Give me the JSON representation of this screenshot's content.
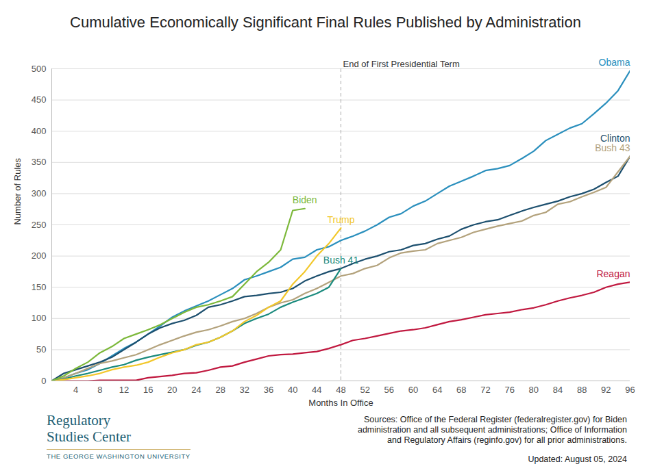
{
  "chart_data": {
    "type": "line",
    "title": "Cumulative Economically Significant Final Rules Published by Administration",
    "x_label": "Months In Office",
    "y_label": "Number of Rules",
    "xlim": [
      0,
      96
    ],
    "xticks": [
      4,
      8,
      12,
      16,
      20,
      24,
      28,
      32,
      36,
      40,
      44,
      48,
      52,
      56,
      60,
      64,
      68,
      72,
      76,
      80,
      84,
      88,
      92,
      96
    ],
    "ylim": [
      0,
      500
    ],
    "yticks": [
      0,
      50,
      100,
      150,
      200,
      250,
      300,
      350,
      400,
      450,
      500
    ],
    "grid": true,
    "annotations": [
      {
        "x": 48,
        "text": "End of First Presidential Term"
      }
    ],
    "x": [
      0,
      2,
      4,
      6,
      8,
      10,
      12,
      14,
      16,
      18,
      20,
      22,
      24,
      26,
      28,
      30,
      32,
      34,
      36,
      38,
      40,
      42,
      44,
      46,
      48,
      50,
      52,
      54,
      56,
      58,
      60,
      62,
      64,
      66,
      68,
      70,
      72,
      74,
      76,
      78,
      80,
      82,
      84,
      86,
      88,
      90,
      92,
      94,
      96
    ],
    "series": [
      {
        "name": "Obama",
        "color": "#2a8fbd",
        "values": [
          0,
          5,
          12,
          18,
          28,
          40,
          52,
          62,
          75,
          88,
          102,
          112,
          120,
          128,
          138,
          148,
          162,
          168,
          175,
          182,
          195,
          198,
          210,
          215,
          225,
          232,
          240,
          250,
          262,
          268,
          280,
          288,
          300,
          312,
          320,
          328,
          337,
          340,
          345,
          356,
          368,
          385,
          395,
          405,
          412,
          428,
          445,
          465,
          497
        ]
      },
      {
        "name": "Clinton",
        "color": "#1c4f6e",
        "values": [
          0,
          12,
          18,
          24,
          30,
          38,
          50,
          62,
          75,
          85,
          92,
          97,
          105,
          118,
          122,
          128,
          135,
          137,
          140,
          142,
          148,
          160,
          168,
          175,
          180,
          188,
          195,
          200,
          207,
          210,
          217,
          220,
          227,
          232,
          243,
          250,
          255,
          258,
          265,
          272,
          278,
          283,
          288,
          295,
          300,
          307,
          318,
          328,
          360
        ]
      },
      {
        "name": "Bush 43",
        "color": "#b3a27c",
        "values": [
          0,
          5,
          12,
          20,
          28,
          32,
          37,
          42,
          50,
          58,
          65,
          72,
          78,
          82,
          88,
          95,
          100,
          108,
          118,
          125,
          130,
          140,
          148,
          158,
          168,
          172,
          180,
          185,
          197,
          205,
          208,
          210,
          220,
          225,
          230,
          238,
          243,
          248,
          252,
          256,
          265,
          270,
          283,
          287,
          295,
          302,
          310,
          335,
          360
        ]
      },
      {
        "name": "Reagan",
        "color": "#c0183f",
        "values": [
          0,
          0,
          0,
          0,
          1,
          1,
          1,
          1,
          5,
          7,
          9,
          12,
          13,
          17,
          22,
          24,
          30,
          35,
          40,
          42,
          43,
          45,
          47,
          52,
          58,
          65,
          68,
          72,
          76,
          80,
          82,
          85,
          90,
          95,
          98,
          102,
          106,
          108,
          110,
          114,
          117,
          122,
          128,
          133,
          137,
          142,
          150,
          155,
          158
        ]
      },
      {
        "name": "Bush 41",
        "color": "#1a8a7d",
        "values": [
          0,
          3,
          8,
          12,
          17,
          22,
          26,
          33,
          38,
          42,
          46,
          50,
          57,
          62,
          70,
          80,
          92,
          100,
          107,
          118,
          126,
          133,
          140,
          150,
          180,
          null,
          null,
          null,
          null,
          null,
          null,
          null,
          null,
          null,
          null,
          null,
          null,
          null,
          null,
          null,
          null,
          null,
          null,
          null,
          null,
          null,
          null,
          null,
          null
        ]
      },
      {
        "name": "Trump",
        "color": "#f2c72a",
        "values": [
          0,
          2,
          5,
          8,
          12,
          18,
          22,
          25,
          30,
          38,
          45,
          50,
          58,
          62,
          70,
          80,
          95,
          105,
          118,
          128,
          155,
          175,
          200,
          220,
          245,
          null,
          null,
          null,
          null,
          null,
          null,
          null,
          null,
          null,
          null,
          null,
          null,
          null,
          null,
          null,
          null,
          null,
          null,
          null,
          null,
          null,
          null,
          null,
          null
        ]
      },
      {
        "name": "Biden",
        "color": "#7cb83a",
        "values": [
          0,
          8,
          20,
          30,
          45,
          55,
          68,
          75,
          82,
          90,
          100,
          110,
          118,
          122,
          128,
          135,
          155,
          175,
          190,
          210,
          273,
          276,
          null,
          null,
          null,
          null,
          null,
          null,
          null,
          null,
          null,
          null,
          null,
          null,
          null,
          null,
          null,
          null,
          null,
          null,
          null,
          null,
          null,
          null,
          null,
          null,
          null,
          null,
          null
        ]
      }
    ]
  },
  "footer": {
    "logo": [
      "Regulatory",
      "Studies Center"
    ],
    "institution": "THE GEORGE WASHINGTON UNIVERSITY",
    "sources": [
      "Sources: Office of the Federal Register (federalregister.gov) for Biden",
      "administration and all subsequent administrations; Office of Information",
      "and Regulatory Affairs (reginfo.gov) for all prior administrations."
    ],
    "updated": "Updated: August 05, 2024"
  }
}
